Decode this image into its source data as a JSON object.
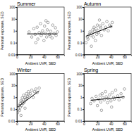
{
  "chart_data": [
    {
      "type": "scatter",
      "title": "Summer",
      "x_label": "Ambient UVR, SED",
      "y_label": "Personal exposure, SED",
      "xlim": [
        0,
        70
      ],
      "xticks": [
        0,
        20,
        40,
        60
      ],
      "ylim": [
        0.01,
        100
      ],
      "yticks": [
        0.01,
        0.1,
        1,
        10,
        100
      ],
      "log": "y",
      "series": [
        {
          "type": "scatter",
          "marker": "circle",
          "color": "#555555",
          "x": [
            18,
            22,
            25,
            27,
            30,
            31,
            33,
            35,
            36,
            38,
            40,
            41,
            42,
            44,
            45,
            46,
            48,
            50,
            52,
            53,
            55,
            57,
            58,
            60,
            28,
            37,
            43,
            49
          ],
          "values": [
            0.8,
            0.3,
            1.5,
            0.5,
            2,
            0.2,
            0.7,
            4,
            0.4,
            1,
            0.15,
            2.5,
            0.6,
            0.3,
            1.2,
            5,
            0.5,
            0.9,
            0.25,
            3,
            0.6,
            1.8,
            0.4,
            0.8,
            0.1,
            0.6,
            7,
            0.35
          ]
        },
        {
          "type": "line",
          "line_style": "solid",
          "color": "#000000",
          "x": [
            15,
            60
          ],
          "values": [
            0.55,
            0.55
          ]
        }
      ]
    },
    {
      "type": "scatter",
      "title": "Autumn",
      "x_label": "Ambient UVR, SED",
      "y_label": "Personal exposure, SED",
      "xlim": [
        0,
        70
      ],
      "xticks": [
        0,
        20,
        40,
        60
      ],
      "ylim": [
        0.01,
        100
      ],
      "yticks": [
        0.01,
        0.1,
        1,
        10,
        100
      ],
      "log": "y",
      "series": [
        {
          "type": "scatter",
          "marker": "circle",
          "color": "#555555",
          "x": [
            3,
            5,
            6,
            8,
            9,
            10,
            12,
            13,
            14,
            15,
            16,
            18,
            19,
            20,
            21,
            22,
            24,
            25,
            26,
            28,
            30,
            32,
            34,
            36,
            38,
            40,
            42,
            11,
            17,
            23
          ],
          "values": [
            0.1,
            0.3,
            0.2,
            0.5,
            0.8,
            0.4,
            0.6,
            1.2,
            0.3,
            2,
            0.9,
            1.5,
            0.5,
            3,
            1,
            0.7,
            2.5,
            1.8,
            0.4,
            4,
            1.2,
            2,
            6,
            1,
            3,
            2.2,
            5,
            0.05,
            0.15,
            8
          ]
        },
        {
          "type": "line",
          "line_style": "solid",
          "color": "#000000",
          "x": [
            3,
            42
          ],
          "values": [
            0.35,
            2.5
          ]
        }
      ]
    },
    {
      "type": "scatter",
      "title": "Winter",
      "x_label": "Ambient UVR, SED",
      "y_label": "Personal exposure, SED",
      "xlim": [
        0,
        70
      ],
      "xticks": [
        0,
        20,
        40,
        60
      ],
      "ylim": [
        0.01,
        100
      ],
      "yticks": [
        0.01,
        0.1,
        1,
        10,
        100
      ],
      "log": "y",
      "series": [
        {
          "type": "scatter",
          "marker": "circle",
          "color": "#555555",
          "x": [
            1,
            2,
            3,
            4,
            5,
            5,
            6,
            7,
            8,
            8,
            9,
            10,
            10,
            11,
            12,
            13,
            14,
            15,
            16,
            17,
            18,
            20,
            22,
            24,
            26,
            28,
            30,
            33,
            6,
            12
          ],
          "values": [
            0.05,
            0.1,
            0.2,
            0.08,
            0.3,
            0.15,
            0.5,
            0.2,
            0.4,
            0.9,
            0.3,
            0.6,
            1.5,
            0.4,
            1,
            0.7,
            2,
            0.8,
            1.2,
            3,
            1.5,
            2,
            4,
            1,
            3,
            5,
            2.5,
            6,
            0.03,
            0.12
          ]
        },
        {
          "type": "line",
          "line_style": "solid",
          "color": "#000000",
          "x": [
            1,
            33
          ],
          "values": [
            0.15,
            3.5
          ]
        }
      ]
    },
    {
      "type": "scatter",
      "title": "Spring",
      "x_label": "Ambient UVR, SED",
      "y_label": "Personal exposure, SED",
      "xlim": [
        0,
        70
      ],
      "xticks": [
        0,
        20,
        40,
        60
      ],
      "ylim": [
        0.01,
        100
      ],
      "yticks": [
        0.01,
        0.1,
        1,
        10,
        100
      ],
      "log": "y",
      "series": [
        {
          "type": "scatter",
          "marker": "circle",
          "color": "#555555",
          "x": [
            10,
            12,
            15,
            18,
            20,
            22,
            24,
            25,
            27,
            28,
            30,
            32,
            33,
            35,
            36,
            38,
            40,
            42,
            44,
            45,
            47,
            50,
            52,
            55,
            58,
            60,
            26,
            41
          ],
          "values": [
            0.3,
            0.8,
            0.5,
            1.2,
            0.2,
            0.7,
            1.5,
            0.4,
            2,
            0.9,
            0.6,
            3,
            1.1,
            0.35,
            0.8,
            1.6,
            0.5,
            2.5,
            1,
            0.7,
            4,
            1.3,
            0.6,
            2,
            1,
            5,
            0.08,
            0.15
          ]
        },
        {
          "type": "line",
          "line_style": "solid",
          "color": "#000000",
          "x": [
            10,
            60
          ],
          "values": [
            0.55,
            1.1
          ]
        }
      ]
    }
  ]
}
